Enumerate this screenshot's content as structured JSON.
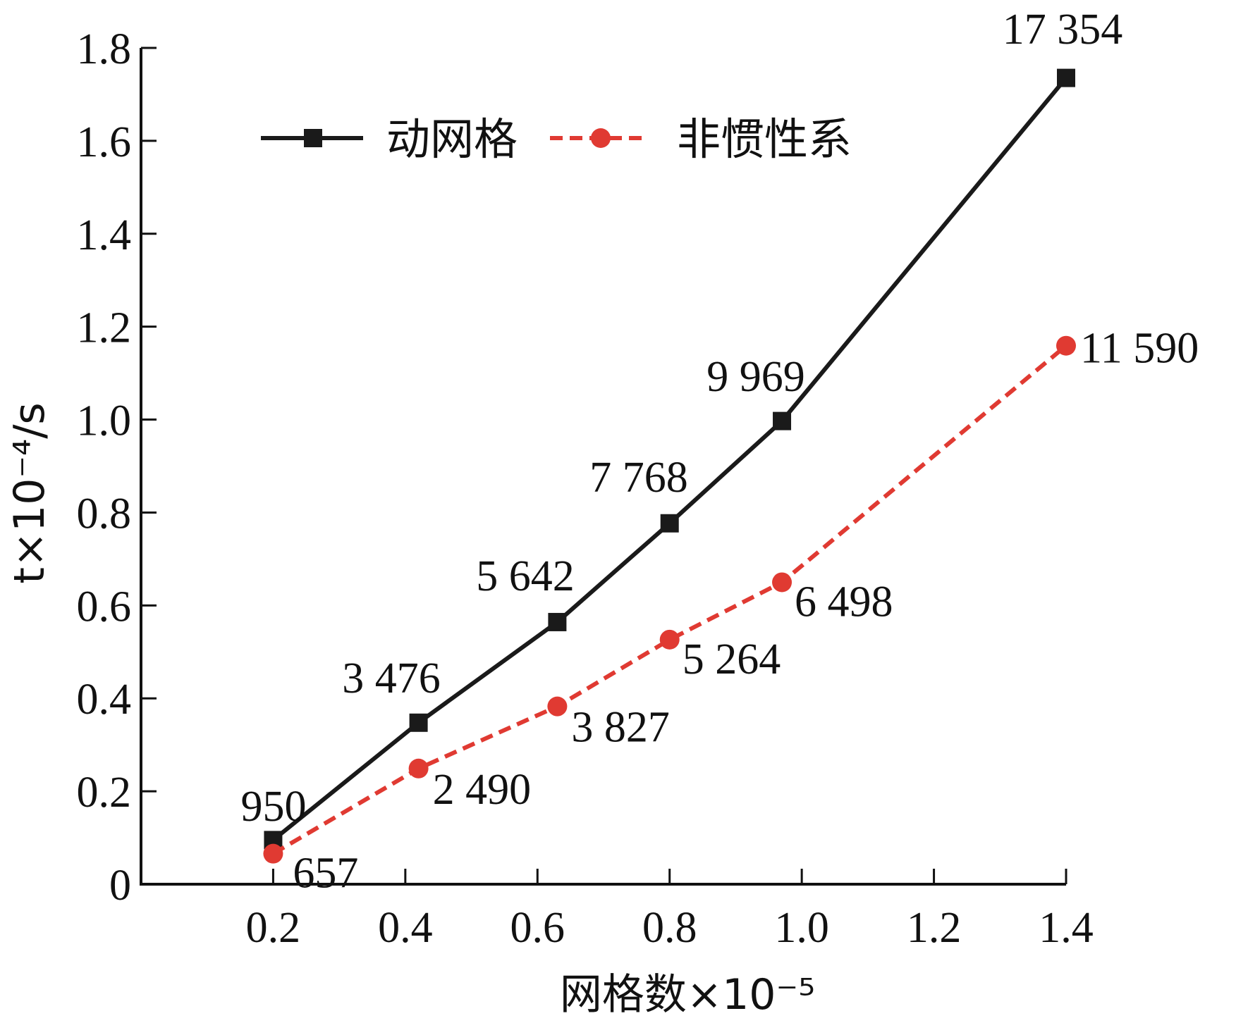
{
  "chart_data": {
    "type": "line",
    "xlabel": "网格数×10⁻⁵",
    "ylabel": "t×10⁻⁴/s",
    "xlim": [
      0,
      1.4
    ],
    "ylim": [
      0,
      1.8
    ],
    "x_ticks": [
      "0.2",
      "0.4",
      "0.6",
      "0.8",
      "1.0",
      "1.2",
      "1.4"
    ],
    "y_ticks": [
      "0",
      "0.2",
      "0.4",
      "0.6",
      "0.8",
      "1.0",
      "1.2",
      "1.4",
      "1.6",
      "1.8"
    ],
    "grid": false,
    "legend": "top-left",
    "series": [
      {
        "name": "动网格",
        "color": "#1a1a1a",
        "marker": "square",
        "line_style": "solid",
        "x": [
          0.2,
          0.42,
          0.63,
          0.8,
          0.97,
          1.4
        ],
        "y": [
          0.095,
          0.3476,
          0.5642,
          0.7768,
          0.9969,
          1.7354
        ],
        "labels": [
          "950",
          "3 476",
          "5 642",
          "7 768",
          "9 969",
          "17 354"
        ]
      },
      {
        "name": "非惯性系",
        "color": "#e03a32",
        "marker": "circle",
        "line_style": "dashed",
        "x": [
          0.2,
          0.42,
          0.63,
          0.8,
          0.97,
          1.4
        ],
        "y": [
          0.0657,
          0.249,
          0.3827,
          0.5264,
          0.6498,
          1.159
        ],
        "labels": [
          "657",
          "2 490",
          "3 827",
          "5 264",
          "6 498",
          "11 590"
        ]
      }
    ]
  }
}
